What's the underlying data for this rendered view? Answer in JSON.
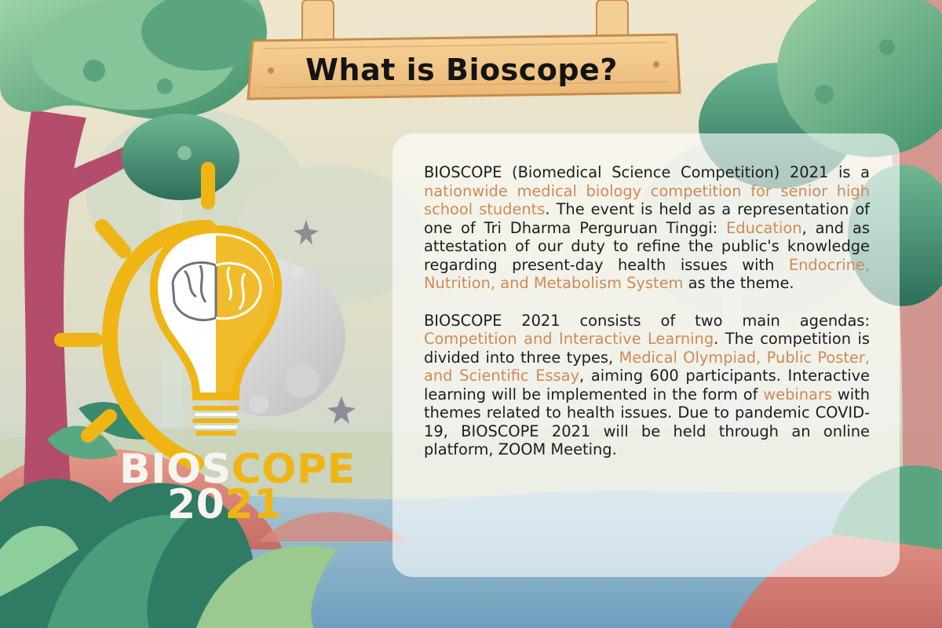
{
  "sign": {
    "title": "What is Bioscope?"
  },
  "logo": {
    "word_white": "BIOS",
    "word_yellow": "COPE",
    "year_white": "20",
    "year_yellow": "21"
  },
  "paragraph1": [
    {
      "text": "BIOSCOPE (Biomedical Science Competition) 2021 is a ",
      "highlight": false
    },
    {
      "text": "nationwide medical biology competition for senior high school students",
      "highlight": true
    },
    {
      "text": ". The event is held as a representation of one of Tri Dharma Perguruan Tinggi: ",
      "highlight": false
    },
    {
      "text": "Education",
      "highlight": true
    },
    {
      "text": ", and as attestation of our duty to refine the public's knowledge regarding present-day health issues with ",
      "highlight": false
    },
    {
      "text": "Endocrine, Nutrition, and Metabolism System",
      "highlight": true
    },
    {
      "text": " as the theme.",
      "highlight": false
    }
  ],
  "paragraph2": [
    {
      "text": "BIOSCOPE 2021 consists of two main agendas: ",
      "highlight": false
    },
    {
      "text": "Competition and Interactive Learning",
      "highlight": true
    },
    {
      "text": ". The competition is divided into three types, ",
      "highlight": false
    },
    {
      "text": "Medical Olympiad, Public Poster, and Scientific Essay",
      "highlight": true
    },
    {
      "text": ", aiming 600 participants. Interactive learning will be implemented in the form of ",
      "highlight": false
    },
    {
      "text": "webinars",
      "highlight": true
    },
    {
      "text": " with themes related to health issues. Due to pandemic COVID-19, BIOSCOPE 2021 will be held through an online platform, ZOOM Meeting.",
      "highlight": false
    }
  ],
  "colors": {
    "highlight": "#cf8a55",
    "logo_yellow": "#efb515",
    "logo_white": "#f7f5ef",
    "text": "#1d1d1d"
  }
}
